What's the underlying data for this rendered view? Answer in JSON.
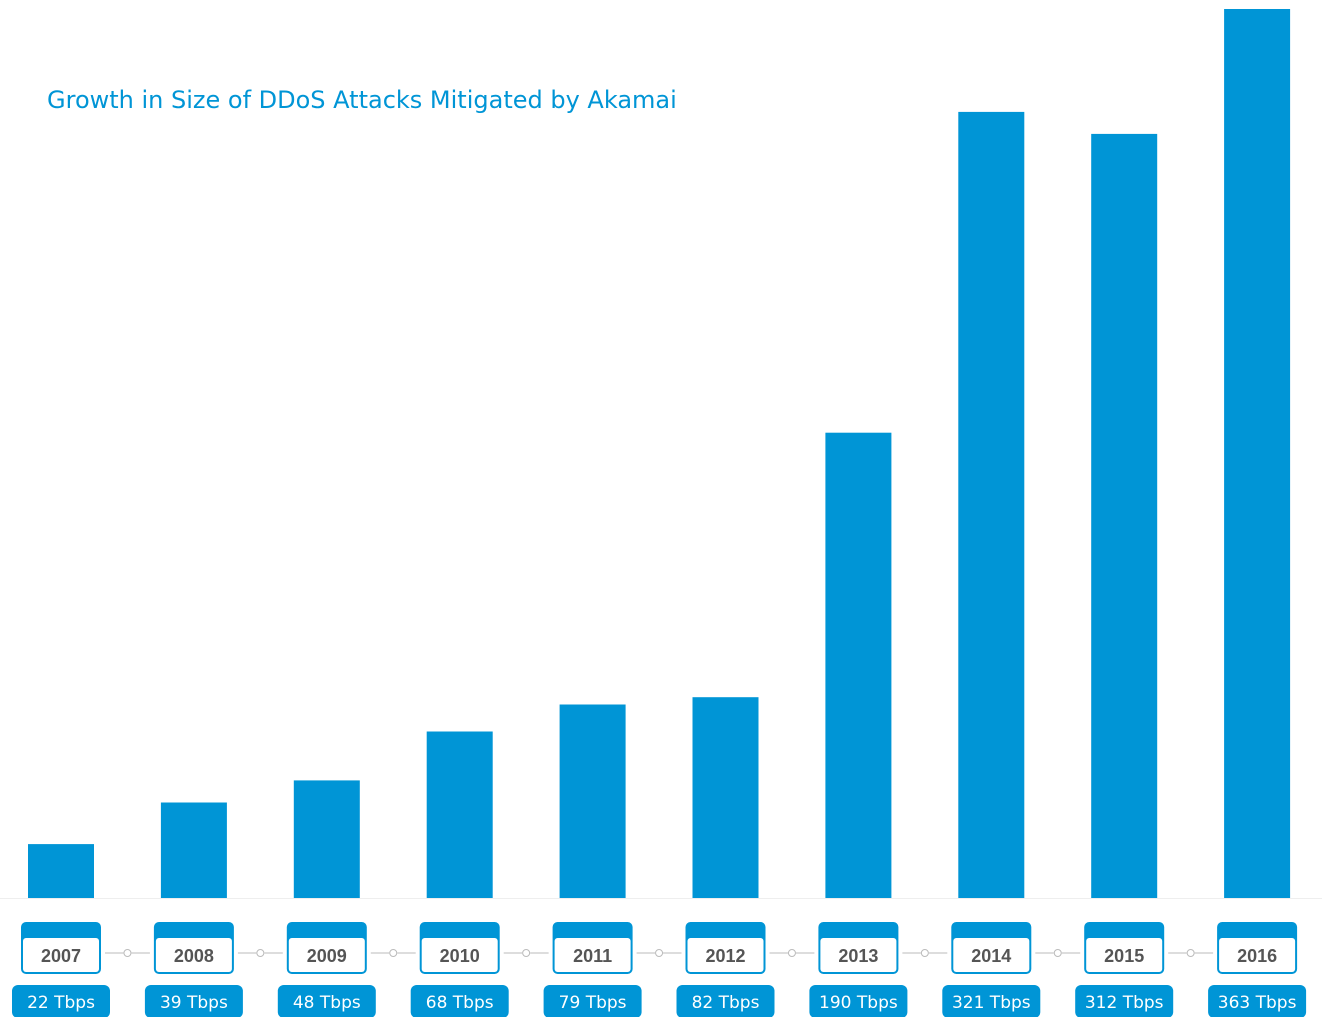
{
  "chart_data": {
    "type": "bar",
    "title": "Growth in Size of DDoS Attacks Mitigated by Akamai",
    "categories": [
      "2007",
      "2008",
      "2009",
      "2010",
      "2011",
      "2012",
      "2013",
      "2014",
      "2015",
      "2016"
    ],
    "values": [
      22,
      39,
      48,
      68,
      79,
      82,
      190,
      321,
      312,
      363
    ],
    "value_labels": [
      "22 Tbps",
      "39 Tbps",
      "48 Tbps",
      "68 Tbps",
      "79 Tbps",
      "82 Tbps",
      "190 Tbps",
      "321 Tbps",
      "312 Tbps",
      "363 Tbps"
    ],
    "xlabel": "",
    "ylabel": "",
    "ylim": [
      0,
      363
    ],
    "grid": false,
    "bar_color": "#0095d6",
    "label_color": "#0095d6",
    "year_text_color": "#555555"
  }
}
